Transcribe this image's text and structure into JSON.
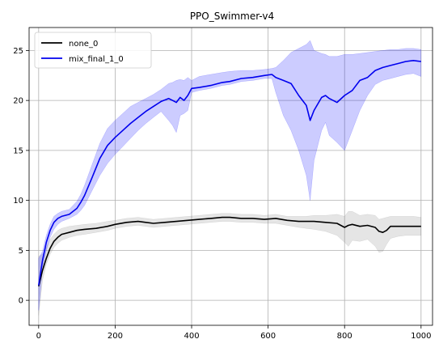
{
  "chart_data": {
    "type": "line",
    "title": "PPO_Swimmer-v4",
    "xlabel": "",
    "ylabel": "",
    "xlim": [
      -25,
      1030
    ],
    "ylim": [
      -2.5,
      27.3
    ],
    "xticks": [
      0,
      200,
      400,
      600,
      800,
      1000
    ],
    "yticks": [
      0,
      5,
      10,
      15,
      20,
      25
    ],
    "grid": true,
    "legend_position": "top-left",
    "series": [
      {
        "name": "none_0",
        "color": "#000000",
        "band_color": "#7f7f7f",
        "x": [
          0,
          10,
          20,
          30,
          40,
          50,
          60,
          80,
          100,
          120,
          150,
          180,
          200,
          230,
          260,
          280,
          300,
          330,
          360,
          390,
          420,
          450,
          480,
          500,
          530,
          560,
          590,
          620,
          650,
          680,
          700,
          720,
          750,
          780,
          800,
          810,
          820,
          840,
          860,
          880,
          890,
          900,
          910,
          920,
          940,
          960,
          980,
          1000
        ],
        "y": [
          1.4,
          3.0,
          4.2,
          5.2,
          5.9,
          6.3,
          6.6,
          6.8,
          7.0,
          7.1,
          7.2,
          7.4,
          7.6,
          7.8,
          7.9,
          7.8,
          7.7,
          7.8,
          7.9,
          8.0,
          8.1,
          8.2,
          8.3,
          8.3,
          8.2,
          8.2,
          8.1,
          8.2,
          8.0,
          7.9,
          7.9,
          7.9,
          7.8,
          7.7,
          7.3,
          7.5,
          7.6,
          7.4,
          7.5,
          7.3,
          6.9,
          6.8,
          7.0,
          7.4,
          7.4,
          7.4,
          7.4,
          7.4
        ],
        "lower": [
          -1.5,
          2.0,
          3.6,
          4.6,
          5.3,
          5.7,
          6.0,
          6.3,
          6.5,
          6.6,
          6.8,
          7.0,
          7.2,
          7.4,
          7.5,
          7.4,
          7.3,
          7.4,
          7.5,
          7.6,
          7.7,
          7.8,
          7.9,
          7.9,
          7.8,
          7.8,
          7.7,
          7.7,
          7.5,
          7.3,
          7.2,
          7.1,
          6.9,
          6.5,
          5.8,
          5.4,
          6.0,
          5.9,
          6.1,
          5.4,
          4.8,
          4.9,
          5.6,
          6.2,
          6.4,
          6.5,
          6.5,
          6.5
        ],
        "upper": [
          4.4,
          4.6,
          5.3,
          6.1,
          6.6,
          7.0,
          7.2,
          7.4,
          7.5,
          7.6,
          7.7,
          7.9,
          8.0,
          8.2,
          8.3,
          8.2,
          8.1,
          8.2,
          8.3,
          8.4,
          8.5,
          8.6,
          8.7,
          8.7,
          8.6,
          8.6,
          8.5,
          8.6,
          8.4,
          8.4,
          8.4,
          8.5,
          8.5,
          8.6,
          8.4,
          8.9,
          8.9,
          8.5,
          8.6,
          8.5,
          8.1,
          8.2,
          8.3,
          8.4,
          8.4,
          8.4,
          8.4,
          8.3
        ]
      },
      {
        "name": "mix_final_1_0",
        "color": "#0000ee",
        "band_color": "#0000ff",
        "x": [
          0,
          10,
          20,
          30,
          40,
          50,
          60,
          80,
          100,
          110,
          120,
          140,
          160,
          180,
          200,
          220,
          240,
          260,
          280,
          300,
          320,
          340,
          350,
          360,
          370,
          380,
          390,
          400,
          420,
          450,
          480,
          500,
          530,
          560,
          590,
          610,
          620,
          640,
          660,
          680,
          700,
          710,
          720,
          740,
          750,
          760,
          780,
          800,
          820,
          840,
          860,
          880,
          900,
          920,
          940,
          960,
          980,
          1000
        ],
        "y": [
          1.5,
          4.0,
          5.8,
          7.0,
          7.8,
          8.2,
          8.4,
          8.6,
          9.2,
          9.8,
          10.5,
          12.3,
          14.2,
          15.5,
          16.3,
          17.0,
          17.7,
          18.3,
          18.9,
          19.4,
          19.9,
          20.2,
          20.0,
          19.8,
          20.3,
          20.0,
          20.5,
          21.2,
          21.3,
          21.5,
          21.8,
          21.9,
          22.2,
          22.3,
          22.5,
          22.6,
          22.3,
          22.0,
          21.7,
          20.5,
          19.5,
          18.0,
          19.0,
          20.3,
          20.5,
          20.2,
          19.8,
          20.5,
          21.0,
          22.0,
          22.3,
          23.0,
          23.3,
          23.5,
          23.7,
          23.9,
          24.0,
          23.9
        ],
        "lower": [
          -1.0,
          3.2,
          5.0,
          6.3,
          7.1,
          7.6,
          7.9,
          8.2,
          8.6,
          9.0,
          9.5,
          11.0,
          12.5,
          13.7,
          14.6,
          15.4,
          16.2,
          17.0,
          17.7,
          18.3,
          18.9,
          18.0,
          17.5,
          16.8,
          18.5,
          18.7,
          19.0,
          20.8,
          21.0,
          21.2,
          21.5,
          21.6,
          21.9,
          22.0,
          22.2,
          22.2,
          20.8,
          18.5,
          17.0,
          15.0,
          12.5,
          10.0,
          14.0,
          17.0,
          17.8,
          16.5,
          15.8,
          15.0,
          17.0,
          19.0,
          20.5,
          21.6,
          22.0,
          22.2,
          22.4,
          22.6,
          22.7,
          22.4
        ],
        "upper": [
          4.2,
          4.9,
          6.5,
          7.6,
          8.4,
          8.7,
          8.9,
          9.1,
          9.9,
          10.6,
          11.5,
          13.6,
          15.7,
          17.2,
          18.0,
          18.7,
          19.4,
          19.8,
          20.2,
          20.6,
          21.1,
          21.7,
          21.8,
          22.0,
          22.1,
          22.0,
          22.3,
          22.0,
          22.4,
          22.6,
          22.8,
          22.9,
          23.0,
          23.0,
          23.1,
          23.2,
          23.3,
          24.0,
          24.8,
          25.2,
          25.6,
          26.0,
          25.0,
          24.7,
          24.6,
          24.4,
          24.4,
          24.6,
          24.6,
          24.7,
          24.8,
          24.9,
          25.0,
          25.1,
          25.1,
          25.2,
          25.2,
          25.1
        ]
      }
    ]
  }
}
